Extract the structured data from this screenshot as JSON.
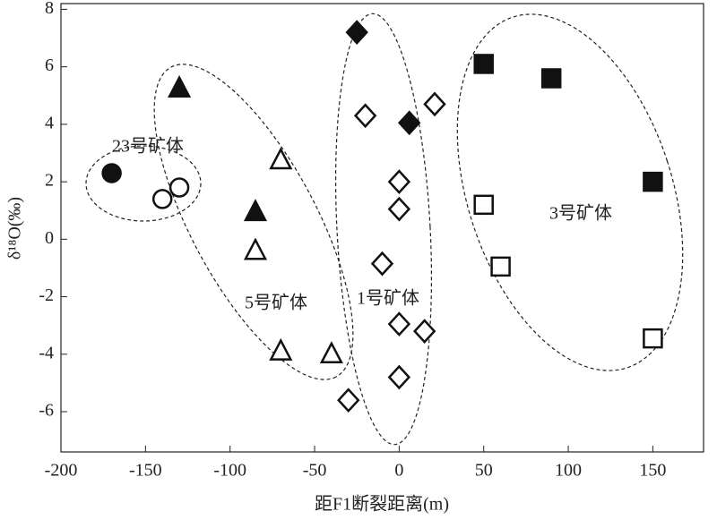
{
  "chart_data": {
    "type": "scatter",
    "xlabel": "距F1断裂距离(m)",
    "ylabel": "δ¹⁸O(‰)",
    "xlim": [
      -200,
      180
    ],
    "ylim": [
      -7.4,
      8.2
    ],
    "xticks": [
      -200,
      -150,
      -100,
      -50,
      0,
      50,
      100,
      150
    ],
    "yticks": [
      -6,
      -4,
      -2,
      0,
      2,
      4,
      6,
      8
    ],
    "annotations": [
      "23号矿体",
      "5号矿体",
      "1号矿体",
      "3号矿体"
    ],
    "series": [
      {
        "marker": "circle",
        "filled": true,
        "color": "#111",
        "x": [
          -170
        ],
        "values": [
          2.3
        ]
      },
      {
        "marker": "circle",
        "filled": false,
        "color": "#111",
        "x": [
          -140,
          -130
        ],
        "values": [
          1.4,
          1.8
        ]
      },
      {
        "marker": "triangle",
        "filled": true,
        "color": "#111",
        "x": [
          -130,
          -85
        ],
        "values": [
          5.25,
          0.95
        ]
      },
      {
        "marker": "triangle",
        "filled": false,
        "color": "#111",
        "x": [
          -70,
          -85,
          -70,
          -40
        ],
        "values": [
          2.75,
          -0.4,
          -3.9,
          -4.0
        ]
      },
      {
        "marker": "diamond",
        "filled": true,
        "color": "#111",
        "x": [
          -25,
          6
        ],
        "values": [
          7.2,
          4.05
        ]
      },
      {
        "marker": "diamond",
        "filled": false,
        "color": "#111",
        "x": [
          -20,
          21,
          0,
          0,
          -10,
          0,
          15,
          0,
          -30
        ],
        "values": [
          4.3,
          4.7,
          2.0,
          1.05,
          -0.85,
          -2.95,
          -3.2,
          -4.8,
          -5.6
        ]
      },
      {
        "marker": "square",
        "filled": true,
        "color": "#111",
        "x": [
          50,
          90,
          150
        ],
        "values": [
          6.1,
          5.6,
          2.0
        ]
      },
      {
        "marker": "square",
        "filled": false,
        "color": "#111",
        "x": [
          50,
          60,
          150
        ],
        "values": [
          1.2,
          -0.95,
          -3.45
        ]
      }
    ]
  }
}
